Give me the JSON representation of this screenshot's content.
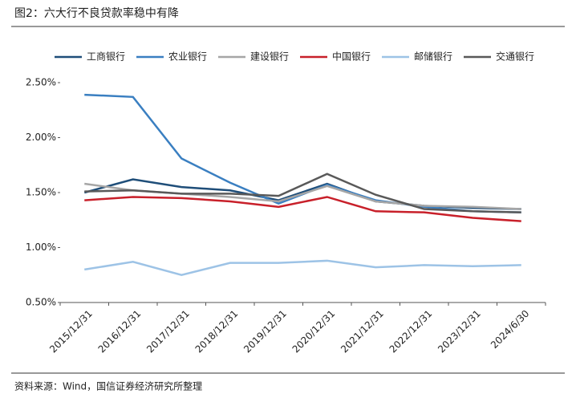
{
  "chart_data": {
    "type": "line",
    "title": "图2：六大行不良贷款率稳中有降",
    "source": "资料来源：Wind，国信证券经济研究所整理",
    "categories": [
      "2015/12/31",
      "2016/12/31",
      "2017/12/31",
      "2018/12/31",
      "2019/12/31",
      "2020/12/31",
      "2021/12/31",
      "2022/12/31",
      "2023/12/31",
      "2024/6/30"
    ],
    "series": [
      {
        "name": "工商银行",
        "color": "#1f4e79",
        "values": [
          1.5,
          1.62,
          1.55,
          1.52,
          1.43,
          1.58,
          1.42,
          1.38,
          1.36,
          1.35
        ]
      },
      {
        "name": "农业银行",
        "color": "#3a7fc1",
        "values": [
          2.39,
          2.37,
          1.81,
          1.59,
          1.4,
          1.57,
          1.43,
          1.37,
          1.33,
          1.32
        ]
      },
      {
        "name": "建设银行",
        "color": "#a6a6a6",
        "values": [
          1.58,
          1.52,
          1.49,
          1.46,
          1.42,
          1.56,
          1.42,
          1.38,
          1.37,
          1.35
        ]
      },
      {
        "name": "中国银行",
        "color": "#c8202a",
        "values": [
          1.43,
          1.46,
          1.45,
          1.42,
          1.37,
          1.46,
          1.33,
          1.32,
          1.27,
          1.24
        ]
      },
      {
        "name": "邮储银行",
        "color": "#9dc3e6",
        "values": [
          0.8,
          0.87,
          0.75,
          0.86,
          0.86,
          0.88,
          0.82,
          0.84,
          0.83,
          0.84
        ]
      },
      {
        "name": "交通银行",
        "color": "#595959",
        "values": [
          1.51,
          1.52,
          1.49,
          1.49,
          1.47,
          1.67,
          1.48,
          1.35,
          1.33,
          1.32
        ]
      }
    ],
    "ylim": [
      0.5,
      2.5
    ],
    "yticks": [
      {
        "value": 0.5,
        "label": "0.50%"
      },
      {
        "value": 1.0,
        "label": "1.00%"
      },
      {
        "value": 1.5,
        "label": "1.50%"
      },
      {
        "value": 2.0,
        "label": "2.00%"
      },
      {
        "value": 2.5,
        "label": "2.50%"
      }
    ],
    "legend": "top"
  }
}
